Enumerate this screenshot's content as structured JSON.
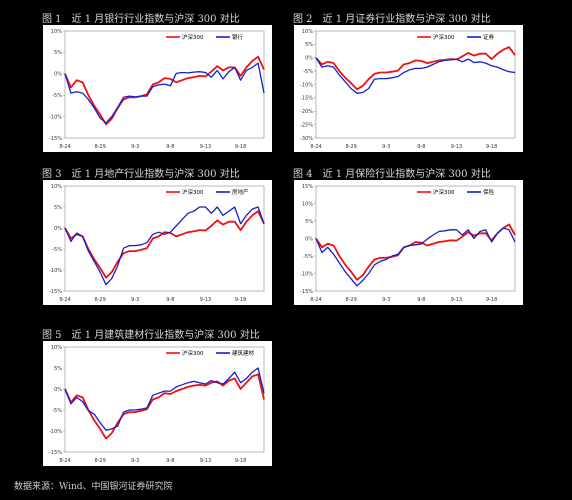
{
  "source_note": "数据来源：Wind、中国银河证券研究院",
  "colors": {
    "hs300": "#ee1111",
    "sector": "#1122cc",
    "frame": "#8a8a8a"
  },
  "chart_data": [
    {
      "type": "line",
      "title": "图 1　近 1 月银行行业指数与沪深 300 对比",
      "ylim": [
        -15,
        10
      ],
      "yticks": [
        "10%",
        "5%",
        "0%",
        "-5%",
        "-10%",
        "-15%"
      ],
      "xticks": [
        "8-24",
        "8-29",
        "9-3",
        "9-8",
        "9-13",
        "9-18"
      ],
      "series": [
        {
          "name": "沪深300",
          "values": [
            0,
            -3.2,
            -1.5,
            -2,
            -5,
            -7.5,
            -9.5,
            -11.8,
            -10.5,
            -8,
            -6,
            -5.5,
            -5.5,
            -5.2,
            -4.8,
            -2.5,
            -2,
            -1,
            -1.2,
            -2,
            -1.5,
            -1,
            -0.8,
            -0.5,
            -0.6,
            0.5,
            1.8,
            0.8,
            1.5,
            1.5,
            -0.5,
            1.5,
            3,
            4,
            1
          ]
        },
        {
          "name": "银行",
          "values": [
            0,
            -4.5,
            -4.2,
            -4.5,
            -6,
            -8,
            -10.3,
            -11.5,
            -10,
            -7.8,
            -5.5,
            -5.2,
            -5.4,
            -5.2,
            -5.2,
            -3,
            -2.6,
            -2.4,
            -2.8,
            0.1,
            0.3,
            0.2,
            0.4,
            0.5,
            0.3,
            -0.8,
            0.8,
            -1.2,
            0.5,
            1.5,
            -1.5,
            0.8,
            1.5,
            2.5,
            -4.5
          ]
        }
      ]
    },
    {
      "type": "line",
      "title": "图 2　近 1 月证券行业指数与沪深 300 对比",
      "ylim": [
        -30,
        10
      ],
      "yticks": [
        "10%",
        "5%",
        "0%",
        "-5%",
        "-10%",
        "-15%",
        "-20%",
        "-25%",
        "-30%"
      ],
      "xticks": [
        "8-24",
        "8-29",
        "9-3",
        "9-8",
        "9-13",
        "9-18"
      ],
      "series": [
        {
          "name": "沪深300",
          "values": [
            0,
            -2.5,
            -1.5,
            -2,
            -5,
            -7.5,
            -9.5,
            -11.8,
            -10.5,
            -8,
            -6,
            -5.5,
            -5.5,
            -5.2,
            -4.8,
            -2.5,
            -2,
            -1,
            -1.2,
            -2,
            -1.5,
            -1,
            -0.8,
            -0.5,
            -0.6,
            0.5,
            1.8,
            0.8,
            1.5,
            1.5,
            -0.5,
            1.5,
            3,
            4,
            1
          ]
        },
        {
          "name": "证券",
          "values": [
            0,
            -3.5,
            -3,
            -3.5,
            -6.5,
            -9,
            -11.5,
            -13.3,
            -13,
            -11.5,
            -8,
            -7.8,
            -7.8,
            -7.5,
            -7,
            -5.5,
            -4.5,
            -4,
            -4,
            -3.5,
            -2.5,
            -1.5,
            -1,
            -0.8,
            -0.5,
            -1.5,
            -0.5,
            -1.8,
            -1.5,
            -2,
            -3,
            -3.5,
            -4.5,
            -5.2,
            -5.5
          ]
        }
      ]
    },
    {
      "type": "line",
      "title": "图 3　近 1 月地产行业指数与沪深 300 对比",
      "ylim": [
        -15,
        10
      ],
      "yticks": [
        "10%",
        "5%",
        "0%",
        "-5%",
        "-10%",
        "-15%"
      ],
      "xticks": [
        "8-24",
        "8-29",
        "9-3",
        "9-8",
        "9-13",
        "9-18"
      ],
      "series": [
        {
          "name": "沪深300",
          "values": [
            0,
            -2.5,
            -1.5,
            -2,
            -5,
            -7.5,
            -9.5,
            -11.8,
            -10.5,
            -8,
            -6,
            -5.5,
            -5.5,
            -5.2,
            -4.8,
            -2.5,
            -2,
            -1,
            -1.2,
            -2,
            -1.5,
            -1,
            -0.8,
            -0.5,
            -0.6,
            0.5,
            1.8,
            0.8,
            1.5,
            1.5,
            -0.5,
            1.5,
            3,
            4,
            1
          ]
        },
        {
          "name": "房地产",
          "values": [
            0,
            -3.2,
            -1.2,
            -2,
            -5.5,
            -8,
            -10.5,
            -13.5,
            -12,
            -9,
            -4.8,
            -4.2,
            -4.2,
            -4,
            -3.5,
            -1.5,
            -1,
            -1.5,
            -1,
            0.5,
            2,
            3.5,
            4,
            5,
            5,
            3.5,
            5,
            3,
            4,
            5,
            1,
            3,
            4.5,
            5,
            1
          ]
        }
      ]
    },
    {
      "type": "line",
      "title": "图 4　近 1 月保险行业指数与沪深 300 对比",
      "ylim": [
        -15,
        15
      ],
      "yticks": [
        "15%",
        "10%",
        "5%",
        "0%",
        "-5%",
        "-10%",
        "-15%"
      ],
      "xticks": [
        "8-24",
        "8-29",
        "9-3",
        "9-8",
        "9-13",
        "9-18"
      ],
      "series": [
        {
          "name": "沪深300",
          "values": [
            0,
            -2.5,
            -1.5,
            -2,
            -5,
            -7.5,
            -9.5,
            -11.8,
            -10.5,
            -8,
            -6,
            -5.5,
            -5.5,
            -5.2,
            -4.8,
            -2.5,
            -2,
            -1,
            -1.2,
            -2,
            -1.5,
            -1,
            -0.8,
            -0.5,
            -0.6,
            0.5,
            1.8,
            0.8,
            1.5,
            1.5,
            -0.5,
            1.5,
            3,
            4,
            1
          ]
        },
        {
          "name": "保险",
          "values": [
            0,
            -4,
            -2.5,
            -4.5,
            -7,
            -9.5,
            -11.5,
            -13.5,
            -12,
            -10,
            -7.5,
            -6.5,
            -6,
            -5,
            -4.5,
            -2.5,
            -2,
            -1.8,
            -1.5,
            -0.2,
            1,
            2,
            2.2,
            2.5,
            2.5,
            1,
            2.5,
            0,
            2,
            2.5,
            -1,
            1.5,
            3,
            2.5,
            -1
          ]
        }
      ]
    },
    {
      "type": "line",
      "title": "图 5　近 1 月建筑建材行业指数与沪深 300 对比",
      "ylim": [
        -15,
        10
      ],
      "yticks": [
        "10%",
        "5%",
        "0%",
        "-5%",
        "-10%",
        "-15%"
      ],
      "xticks": [
        "8-24",
        "8-29",
        "9-3",
        "9-8",
        "9-13",
        "9-18"
      ],
      "series": [
        {
          "name": "沪深300",
          "values": [
            0,
            -3.2,
            -1.5,
            -2,
            -5,
            -7.5,
            -9.5,
            -11.8,
            -10.5,
            -8,
            -6,
            -5.5,
            -5.5,
            -5.2,
            -4.8,
            -2.5,
            -2,
            -1,
            -1.2,
            -0.5,
            0,
            0.5,
            0.8,
            1,
            0.8,
            1.5,
            1.8,
            0.8,
            2,
            2.5,
            0,
            1.5,
            3,
            3.5,
            -2.5
          ]
        },
        {
          "name": "建筑建材",
          "values": [
            0,
            -3.5,
            -2,
            -3,
            -5.2,
            -6,
            -8,
            -9.8,
            -9.5,
            -8.8,
            -5.5,
            -5,
            -5,
            -4.8,
            -4.5,
            -1.5,
            -1,
            -0.5,
            -0.5,
            0.5,
            1,
            1.5,
            1.8,
            1.5,
            1.2,
            2,
            1.5,
            1.2,
            2.5,
            4,
            1.5,
            2.5,
            4,
            5,
            -1
          ]
        }
      ]
    }
  ]
}
